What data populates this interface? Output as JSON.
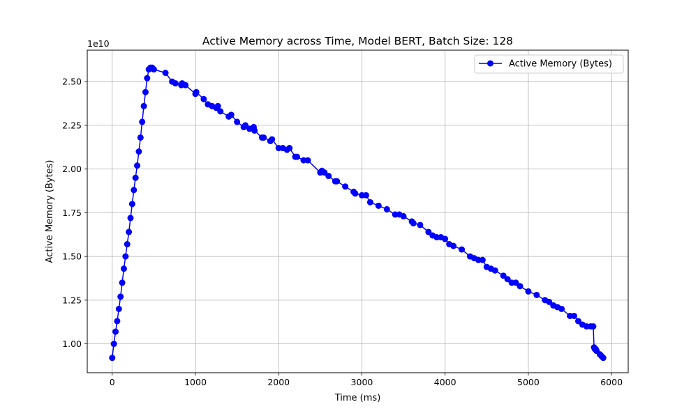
{
  "chart_data": {
    "type": "line",
    "title": "Active Memory across Time, Model BERT, Batch Size: 128",
    "xlabel": "Time (ms)",
    "ylabel": "Active Memory (Bytes)",
    "y_offset_label": "1e10",
    "xlim": [
      -300,
      6200
    ],
    "ylim": [
      0.835,
      2.68
    ],
    "x_ticks": [
      0,
      1000,
      2000,
      3000,
      4000,
      5000,
      6000
    ],
    "x_tick_labels": [
      "0",
      "1000",
      "2000",
      "3000",
      "4000",
      "5000",
      "6000"
    ],
    "y_ticks": [
      1.0,
      1.25,
      1.5,
      1.75,
      2.0,
      2.25,
      2.5
    ],
    "y_tick_labels": [
      "1.00",
      "1.25",
      "1.50",
      "1.75",
      "2.00",
      "2.25",
      "2.50"
    ],
    "grid": true,
    "legend_position": "top-right",
    "series": [
      {
        "name": "Active Memory (Bytes)",
        "color": "#0000ff",
        "marker": "circle",
        "x": [
          0,
          20,
          40,
          60,
          80,
          100,
          120,
          140,
          160,
          180,
          200,
          220,
          240,
          260,
          280,
          300,
          320,
          340,
          360,
          380,
          400,
          420,
          440,
          460,
          480,
          500,
          640,
          720,
          760,
          830,
          840,
          880,
          1000,
          1010,
          1100,
          1150,
          1200,
          1250,
          1270,
          1300,
          1400,
          1430,
          1500,
          1580,
          1600,
          1650,
          1700,
          1710,
          1800,
          1820,
          1900,
          1920,
          2000,
          2050,
          2100,
          2130,
          2200,
          2220,
          2300,
          2350,
          2500,
          2520,
          2550,
          2600,
          2680,
          2700,
          2800,
          2900,
          2920,
          3000,
          3050,
          3100,
          3200,
          3300,
          3400,
          3450,
          3500,
          3600,
          3620,
          3700,
          3800,
          3850,
          3900,
          3950,
          4000,
          4050,
          4100,
          4200,
          4300,
          4350,
          4400,
          4450,
          4500,
          4550,
          4600,
          4700,
          4750,
          4800,
          4850,
          4900,
          5000,
          5100,
          5200,
          5250,
          5300,
          5350,
          5400,
          5500,
          5550,
          5600,
          5650,
          5700,
          5750,
          5780,
          5790,
          5800,
          5810,
          5820,
          5860,
          5880,
          5900
        ],
        "values": [
          0.92,
          1.0,
          1.07,
          1.13,
          1.2,
          1.27,
          1.35,
          1.43,
          1.5,
          1.57,
          1.64,
          1.72,
          1.8,
          1.88,
          1.95,
          2.02,
          2.1,
          2.18,
          2.27,
          2.36,
          2.44,
          2.52,
          2.57,
          2.58,
          2.58,
          2.57,
          2.55,
          2.5,
          2.49,
          2.48,
          2.49,
          2.48,
          2.43,
          2.44,
          2.4,
          2.37,
          2.36,
          2.35,
          2.36,
          2.33,
          2.3,
          2.31,
          2.27,
          2.24,
          2.25,
          2.23,
          2.24,
          2.22,
          2.18,
          2.18,
          2.16,
          2.17,
          2.12,
          2.12,
          2.11,
          2.12,
          2.07,
          2.07,
          2.05,
          2.05,
          1.98,
          1.99,
          1.98,
          1.96,
          1.93,
          1.93,
          1.9,
          1.87,
          1.86,
          1.85,
          1.85,
          1.81,
          1.79,
          1.77,
          1.74,
          1.74,
          1.73,
          1.7,
          1.69,
          1.68,
          1.64,
          1.62,
          1.61,
          1.61,
          1.6,
          1.57,
          1.56,
          1.54,
          1.5,
          1.49,
          1.48,
          1.48,
          1.44,
          1.43,
          1.42,
          1.39,
          1.37,
          1.35,
          1.35,
          1.33,
          1.3,
          1.28,
          1.25,
          1.24,
          1.22,
          1.21,
          1.2,
          1.16,
          1.16,
          1.13,
          1.11,
          1.1,
          1.1,
          1.1,
          0.98,
          0.97,
          0.97,
          0.96,
          0.94,
          0.93,
          0.92
        ]
      }
    ]
  }
}
